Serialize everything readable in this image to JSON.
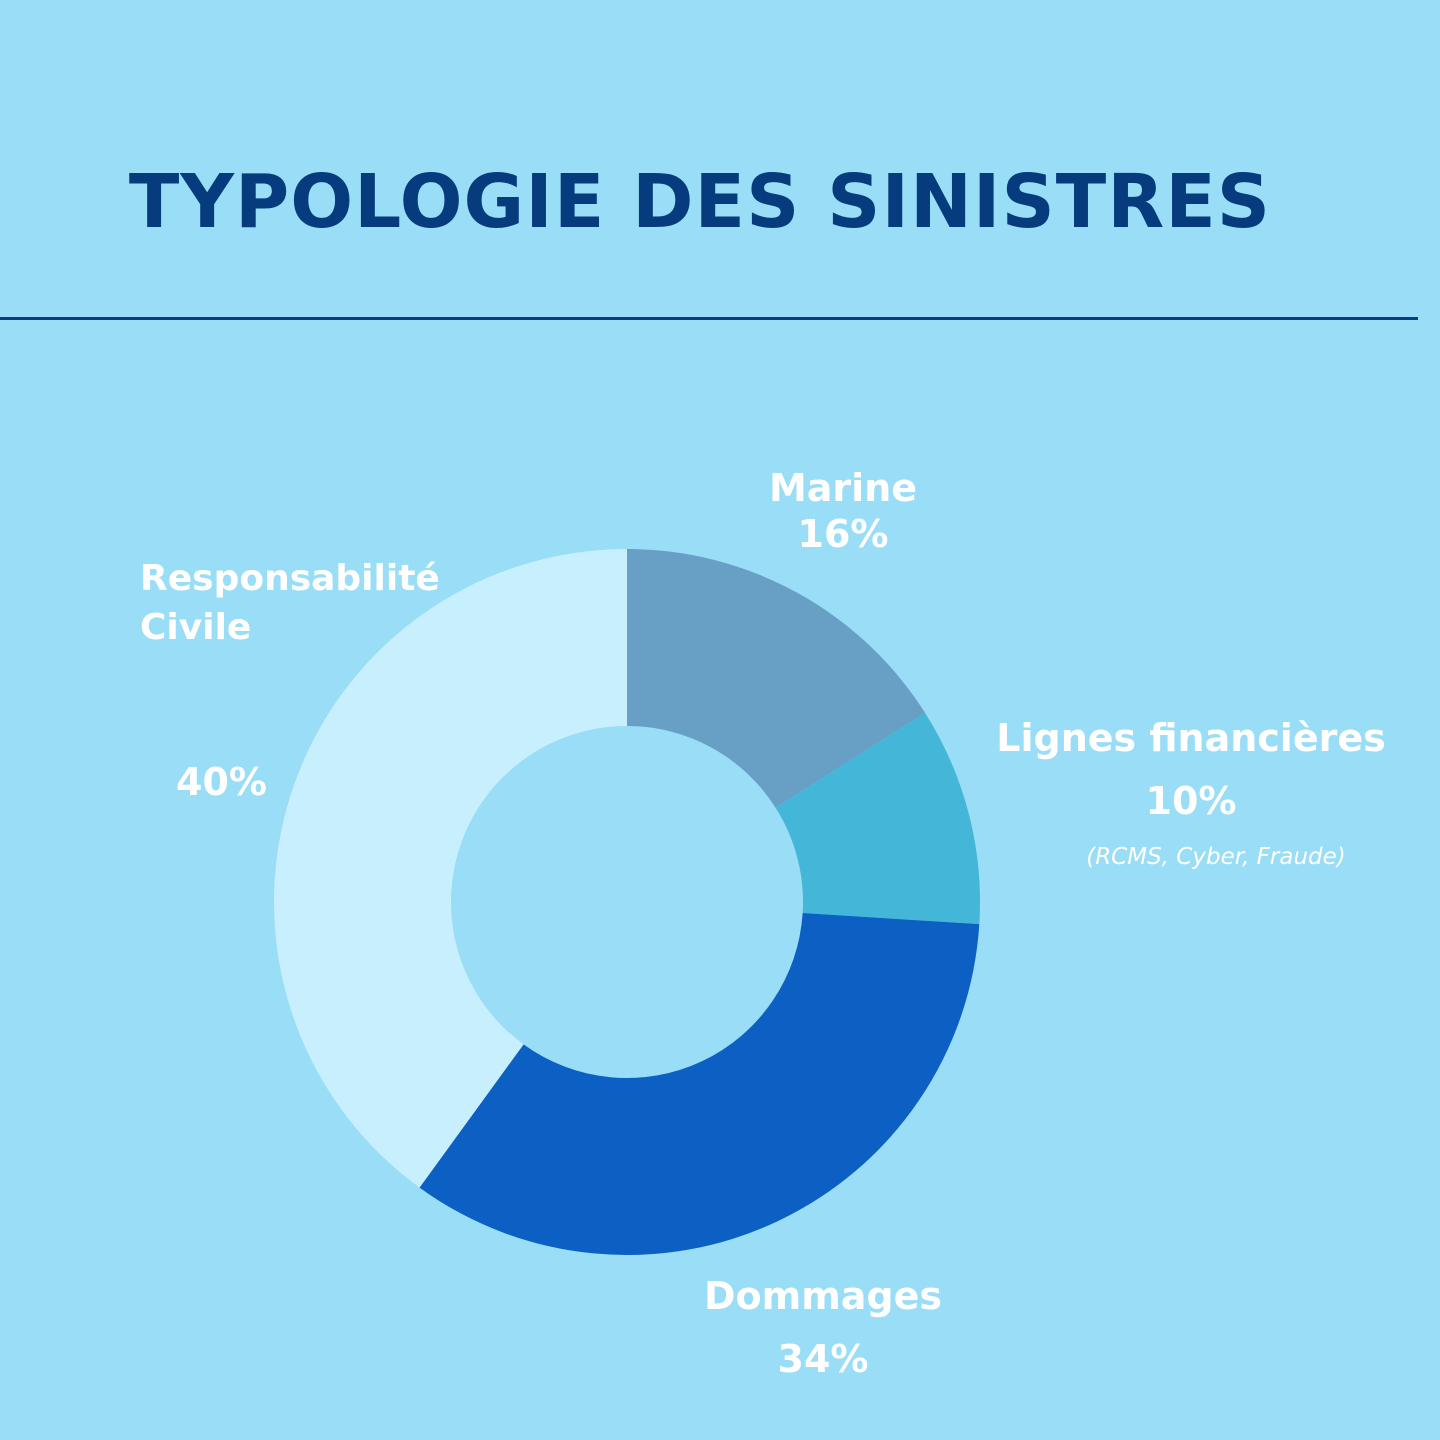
{
  "page": {
    "title": "TYPOLOGIE DES SINISTRES",
    "background": "#99DDF6",
    "title_color": "#063C7E"
  },
  "chart_data": {
    "type": "pie",
    "donut": true,
    "title": "TYPOLOGIE DES SINISTRES",
    "slices": [
      {
        "name": "Marine",
        "value": 16,
        "value_label": "16%",
        "color": "#689FC4",
        "note": ""
      },
      {
        "name": "Lignes financières",
        "value": 10,
        "value_label": "10%",
        "color": "#44B6D8",
        "note": "(RCMS, Cyber, Fraude)"
      },
      {
        "name": "Dommages",
        "value": 34,
        "value_label": "34%",
        "color": "#0C60C3",
        "note": ""
      },
      {
        "name": "Responsabilité Civile",
        "name_line1": "Responsabilité",
        "name_line2": "Civile",
        "value": 40,
        "value_label": "40%",
        "color": "#C8EFFD",
        "note": ""
      }
    ],
    "legend": "none",
    "label_placement": "outside"
  }
}
